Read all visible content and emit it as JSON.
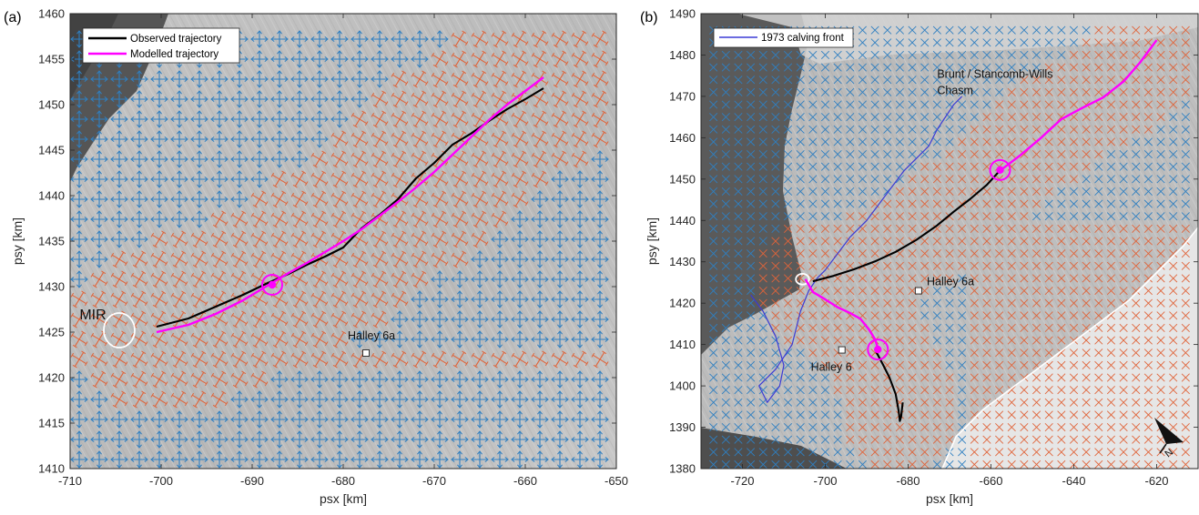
{
  "colors": {
    "observed": "#000000",
    "modelled": "#ff00ff",
    "calving_front_1973": "#3b3bd6",
    "stress_compressive": "#2f7fc1",
    "stress_tensile": "#e0643a",
    "outline": "#ffffff",
    "ice_shelf_background": "#bdbdbd",
    "sea_ice_dark": "#4a4a4a"
  },
  "chart_data": [
    {
      "panel_label": "(a)",
      "type": "line",
      "xlabel": "psx [km]",
      "ylabel": "psy [km]",
      "xlim": [
        -710,
        -650
      ],
      "ylim": [
        1410,
        1460
      ],
      "xticks": [
        -710,
        -700,
        -690,
        -680,
        -670,
        -660,
        -650
      ],
      "yticks": [
        1410,
        1415,
        1420,
        1425,
        1430,
        1435,
        1440,
        1445,
        1450,
        1455,
        1460
      ],
      "grid": false,
      "legend": {
        "position": "top-left",
        "entries": [
          "Observed trajectory",
          "Modelled trajectory"
        ]
      },
      "series": [
        {
          "name": "Observed trajectory",
          "color": "#000000",
          "x": [
            -700.5,
            -697,
            -694,
            -691,
            -688.5,
            -686,
            -684,
            -682,
            -680,
            -678,
            -676,
            -674,
            -672,
            -670,
            -668,
            -666,
            -664,
            -662,
            -660,
            -658
          ],
          "y": [
            1425.6,
            1426.5,
            1427.8,
            1429.1,
            1430.3,
            1431.4,
            1432.4,
            1433.3,
            1434.3,
            1436.4,
            1437.9,
            1439.6,
            1441.9,
            1443.6,
            1445.6,
            1446.8,
            1448.2,
            1449.5,
            1450.6,
            1451.8
          ]
        },
        {
          "name": "Modelled trajectory",
          "color": "#ff00ff",
          "x": [
            -700.5,
            -697,
            -694,
            -691,
            -688.5,
            -686,
            -684,
            -682,
            -680,
            -678,
            -676,
            -674,
            -672,
            -670,
            -668,
            -666,
            -664,
            -662,
            -660,
            -658
          ],
          "y": [
            1425.0,
            1425.8,
            1427.0,
            1428.5,
            1430.0,
            1431.5,
            1432.6,
            1433.8,
            1435.0,
            1436.3,
            1437.8,
            1439.3,
            1440.9,
            1442.6,
            1444.5,
            1446.4,
            1448.3,
            1450.0,
            1451.5,
            1453.0
          ]
        }
      ],
      "markers": [
        {
          "label": "",
          "x": -687.8,
          "y": 1430.2,
          "style": "magenta-circle"
        }
      ],
      "annotations": [
        {
          "text": "MIR",
          "x": -707.5,
          "y": 1426.4
        },
        {
          "text": "Halley 6a",
          "x": -679.5,
          "y": 1424.2
        }
      ],
      "stations": [
        {
          "name": "Halley 6a",
          "x": -677.5,
          "y": 1422.7
        }
      ],
      "stress_field": {
        "x_range": [
          -709,
          -651
        ],
        "y_range": [
          1411,
          1459
        ],
        "spacing": 2.2,
        "legend": "none"
      },
      "outlines": [
        {
          "name": "MIR",
          "cx": -704.6,
          "cy": 1425.2,
          "rx": 1.7,
          "ry": 1.9
        }
      ]
    },
    {
      "panel_label": "(b)",
      "type": "line",
      "xlabel": "psx [km]",
      "ylabel": "psy [km]",
      "xlim": [
        -730,
        -610
      ],
      "ylim": [
        1380,
        1490
      ],
      "xticks": [
        -720,
        -700,
        -680,
        -660,
        -640,
        -620
      ],
      "yticks": [
        1380,
        1390,
        1400,
        1410,
        1420,
        1430,
        1440,
        1450,
        1460,
        1470,
        1480,
        1490
      ],
      "grid": false,
      "legend": {
        "position": "top-left",
        "entries": [
          "1973 calving front"
        ]
      },
      "series": [
        {
          "name": "1973 calving front",
          "color": "#3b3bd6",
          "x": [
            -718,
            -715,
            -712,
            -710,
            -711,
            -714,
            -716,
            -712,
            -708,
            -706,
            -704,
            -702,
            -700,
            -697,
            -694,
            -690,
            -687,
            -684,
            -681,
            -678,
            -675,
            -673,
            -671,
            -669,
            -667
          ],
          "y": [
            1422,
            1418,
            1412,
            1405,
            1400,
            1396,
            1400,
            1404,
            1410,
            1418,
            1423,
            1426,
            1428,
            1432,
            1436,
            1440,
            1444,
            1448,
            1452,
            1455,
            1458,
            1462,
            1465,
            1468,
            1470
          ]
        },
        {
          "name": "Observed trajectory",
          "color": "#000000",
          "x": [
            -703,
            -698,
            -693,
            -688,
            -683,
            -678,
            -673,
            -669,
            -665,
            -661,
            -658
          ],
          "y": [
            1425.3,
            1426.6,
            1428.2,
            1430.1,
            1432.4,
            1435.3,
            1438.8,
            1442.1,
            1445.2,
            1448.6,
            1451.9
          ]
        },
        {
          "name": "Observed trajectory (south branch)",
          "color": "#000000",
          "x": [
            -688,
            -686,
            -684.5,
            -683,
            -682.3,
            -682,
            -681.7,
            -681.3
          ],
          "y": [
            1408.8,
            1405,
            1402,
            1398,
            1394,
            1391.5,
            1392.5,
            1396
          ]
        },
        {
          "name": "Modelled trajectory",
          "color": "#ff00ff",
          "x": [
            -658,
            -653,
            -648,
            -643,
            -638,
            -633,
            -628,
            -624,
            -620
          ],
          "y": [
            1451.9,
            1455.7,
            1459.9,
            1464.5,
            1467.2,
            1469.7,
            1473.6,
            1478.2,
            1483.6
          ]
        },
        {
          "name": "Modelled trajectory (southwest)",
          "color": "#ff00ff",
          "x": [
            -704.8,
            -703,
            -700,
            -697,
            -694,
            -691.5,
            -689.5,
            -688,
            -687.2
          ],
          "y": [
            1425.8,
            1422.7,
            1420.9,
            1419,
            1417.6,
            1416.2,
            1413.7,
            1411.3,
            1408.8
          ]
        }
      ],
      "markers": [
        {
          "label": "",
          "x": -657.8,
          "y": 1452.2,
          "style": "magenta-circle"
        },
        {
          "label": "",
          "x": -687.3,
          "y": 1408.8,
          "style": "magenta-circle"
        }
      ],
      "annotations": [
        {
          "text": "Brunt / Stancomb-Wills",
          "x": -673,
          "y": 1474.5
        },
        {
          "text": "Chasm",
          "x": -673,
          "y": 1470.5
        },
        {
          "text": "Halley 6a",
          "x": -675.5,
          "y": 1424.3
        },
        {
          "text": "Halley 6",
          "x": -703.5,
          "y": 1403.7
        }
      ],
      "stations": [
        {
          "name": "Halley 6a",
          "x": -677.5,
          "y": 1423
        },
        {
          "name": "Halley 6",
          "x": -696,
          "y": 1408.7
        }
      ],
      "stress_field": {
        "x_range": [
          -727,
          -612
        ],
        "y_range": [
          1381,
          1486
        ],
        "spacing": 3.0,
        "legend": "none"
      },
      "outlines": [
        {
          "name": "rift",
          "cx": -705.5,
          "cy": 1425.8,
          "rx": 1.6,
          "ry": 1.3
        }
      ]
    }
  ]
}
